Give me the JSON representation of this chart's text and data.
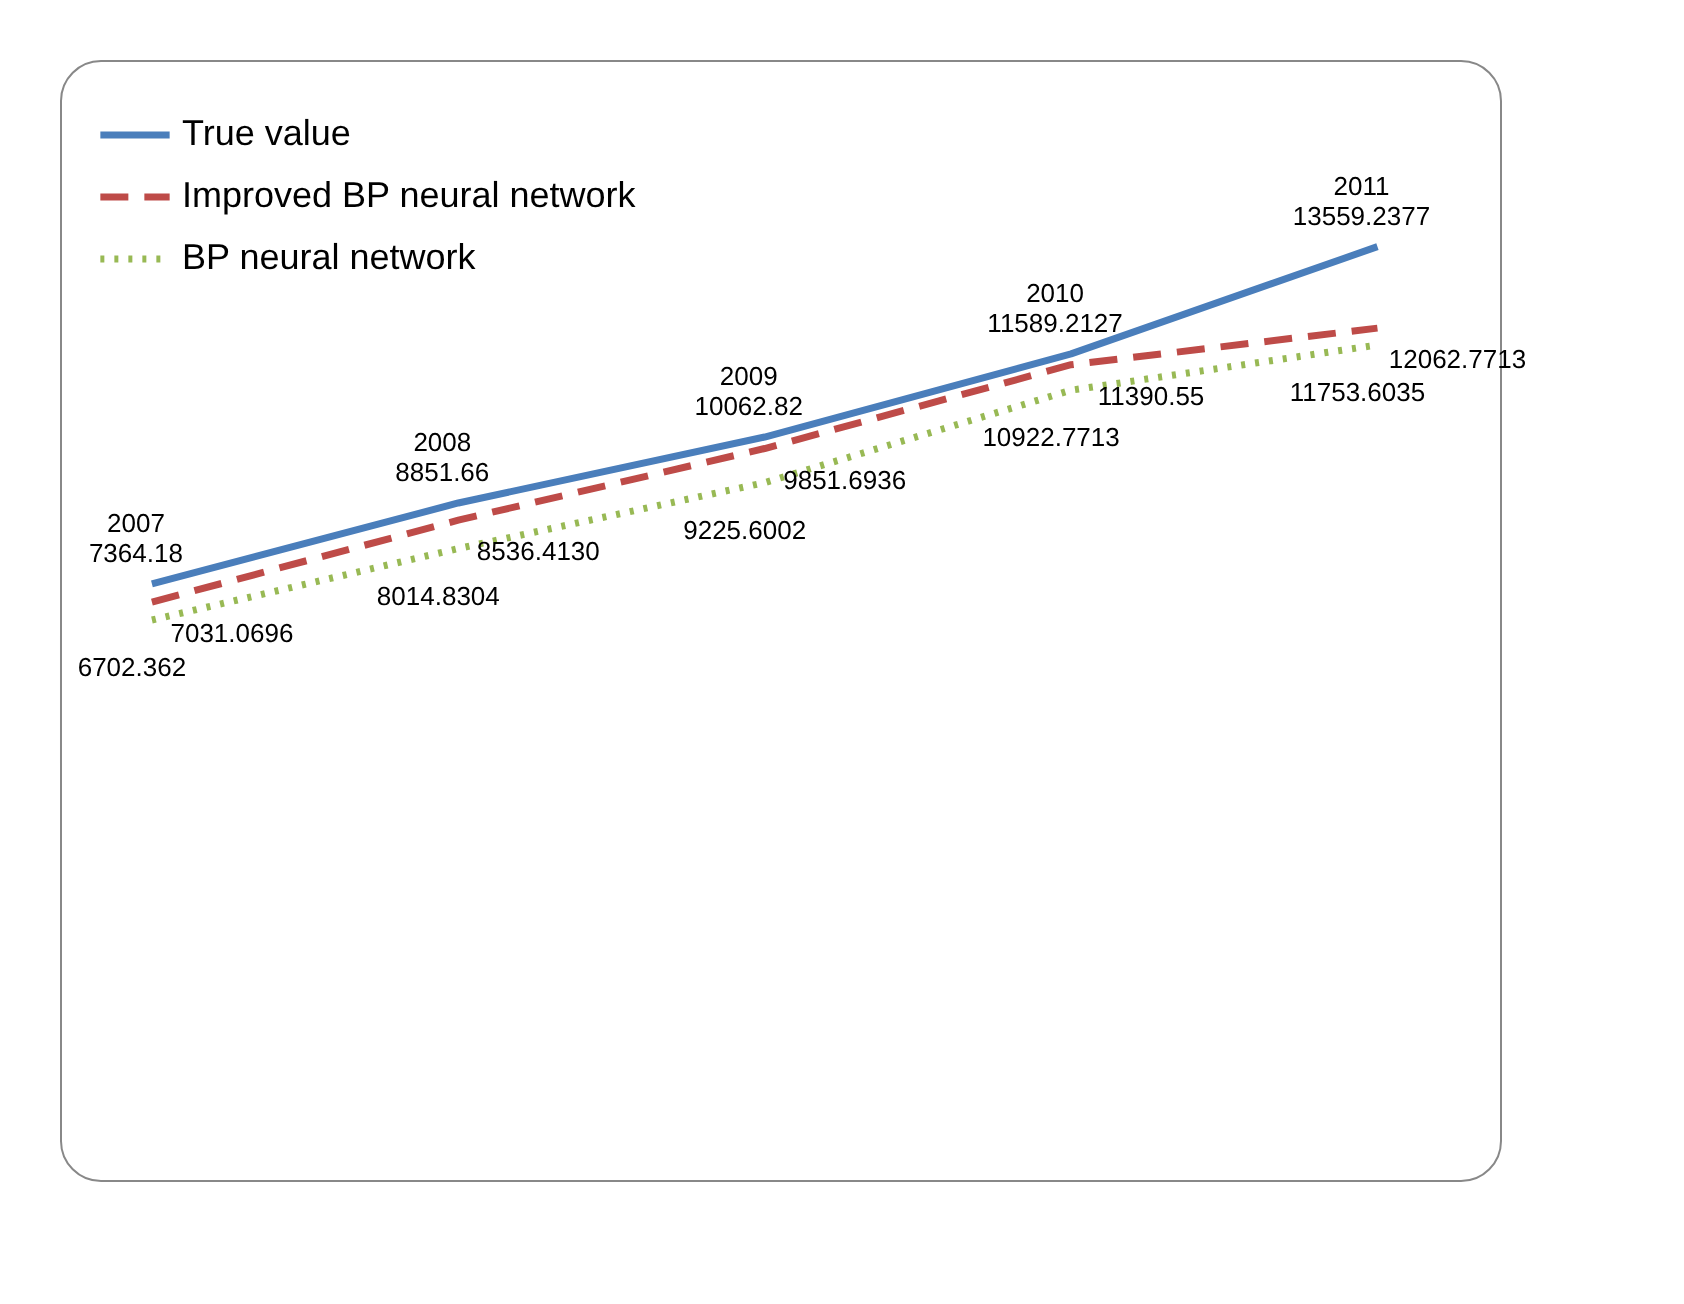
{
  "chart_data": {
    "type": "line",
    "categories": [
      "2007",
      "2008",
      "2009",
      "2010",
      "2011"
    ],
    "series": [
      {
        "name": "True value",
        "color": "#4a7ebb",
        "line_style": "solid",
        "values": [
          7364.18,
          8851.66,
          10062.82,
          11589.2127,
          13559.2377
        ],
        "value_labels": [
          "7364.18",
          "8851.66",
          "10062.82",
          "11589.2127",
          "13559.2377"
        ]
      },
      {
        "name": "Improved BP neural network",
        "color": "#be4b48",
        "line_style": "dashed",
        "values": [
          7031.0696,
          8536.413,
          9851.6936,
          11390.55,
          12062.7713
        ],
        "value_labels": [
          "7031.0696",
          "8536.4130",
          "9851.6936",
          "11390.55",
          "12062.7713"
        ]
      },
      {
        "name": "BP neural network",
        "color": "#98b954",
        "line_style": "dotted",
        "values": [
          6702.362,
          8014.8304,
          9225.6002,
          10922.7713,
          11753.6035
        ],
        "value_labels": [
          "6702.362",
          "8014.8304",
          "9225.6002",
          "10922.7713",
          "11753.6035"
        ]
      }
    ],
    "data_labels": true,
    "tick_labels": false,
    "legend": "top left"
  }
}
